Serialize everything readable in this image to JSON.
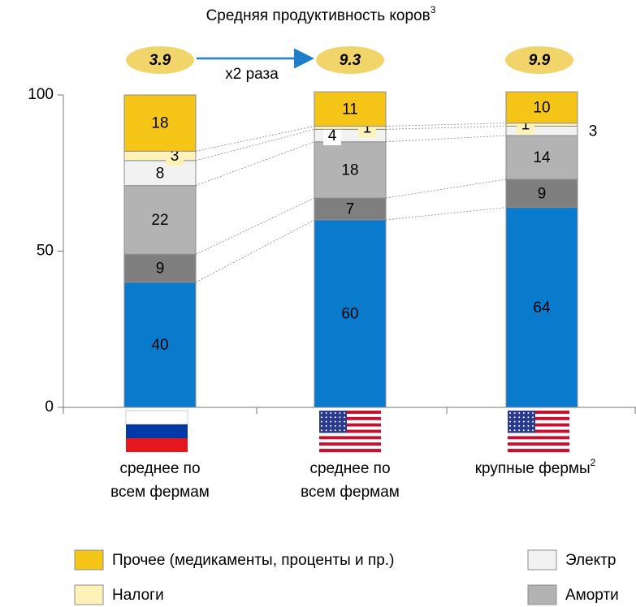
{
  "chart_data": {
    "type": "bar",
    "stacked": true,
    "title": "Средняя продуктивность коров",
    "title_superscript": "3",
    "productivity": [
      3.9,
      9.3,
      9.9
    ],
    "annotation": "x2 раза",
    "categories": [
      [
        "среднее по",
        "всем фермам"
      ],
      [
        "среднее по",
        "всем фермам"
      ],
      [
        "крупные фермы"
      ]
    ],
    "category_superscripts": [
      null,
      null,
      "2"
    ],
    "series": [
      {
        "color": "#0a7acd",
        "values": [
          40,
          60,
          64
        ]
      },
      {
        "color": "#7f7f7f",
        "values": [
          9,
          7,
          9
        ]
      },
      {
        "name": "Аморти",
        "color": "#b3b3b3",
        "values": [
          22,
          18,
          14
        ]
      },
      {
        "name": "Электр",
        "color": "#f2f2f2",
        "values": [
          8,
          4,
          3
        ]
      },
      {
        "name": "Налоги",
        "color": "#fff2b8",
        "values": [
          3,
          1,
          1
        ]
      },
      {
        "name": "Прочее (медикаменты, проценты и пр.)",
        "color": "#f5c518",
        "values": [
          18,
          11,
          10
        ]
      }
    ],
    "ylim": [
      0,
      100
    ],
    "yticks": [
      0,
      50,
      100
    ]
  }
}
